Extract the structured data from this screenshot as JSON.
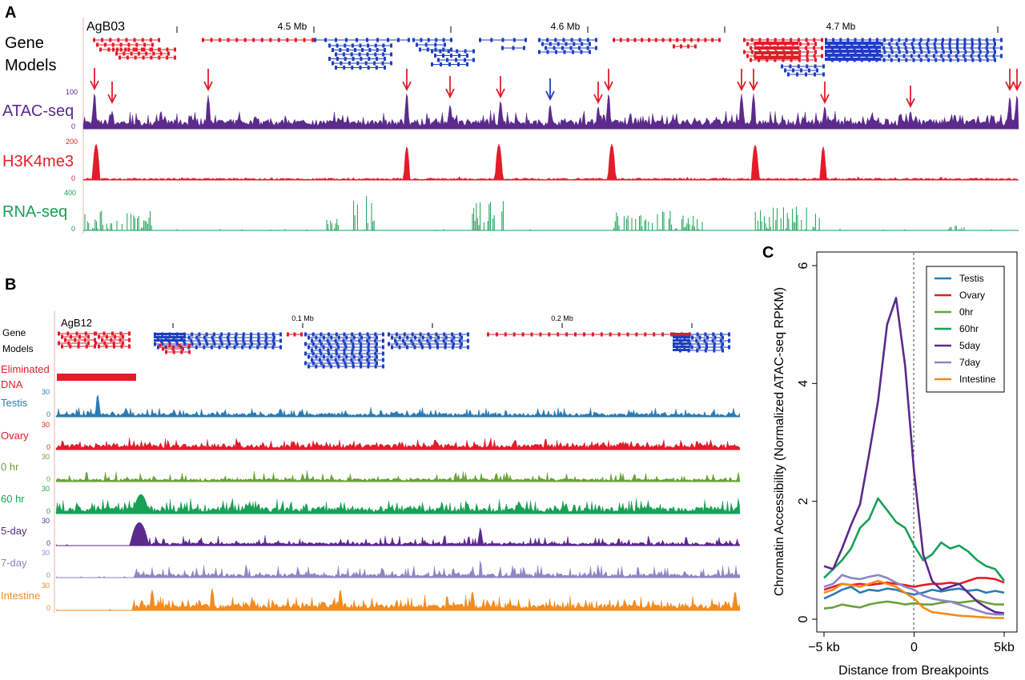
{
  "panels": {
    "a": "A",
    "b": "B",
    "c": "C"
  },
  "panel_a": {
    "chrom": "AgB03",
    "coord_ticks": [
      {
        "label": "4.5 Mb"
      },
      {
        "label": "4.6 Mb"
      },
      {
        "label": "4.7 Mb"
      }
    ],
    "gene_models_line1": "Gene",
    "gene_models_line2": "Models",
    "tracks": [
      {
        "label": "ATAC-seq",
        "max": "100",
        "min": "0",
        "color": "#5b2a8c"
      },
      {
        "label": "H3K4me3",
        "max": "200",
        "min": "0",
        "color": "#e11d2a"
      },
      {
        "label": "RNA-seq",
        "max": "400",
        "min": "0",
        "color": "#17a155"
      }
    ],
    "arrow_colors": {
      "red": "#e11d2a",
      "blue": "#1f3fbf"
    }
  },
  "panel_b": {
    "chrom": "AgB12",
    "coord_ticks": [
      {
        "label": "0.1 Mb"
      },
      {
        "label": "0.2 Mb"
      }
    ],
    "gene_models_line1": "Gene",
    "gene_models_line2": "Models",
    "eliminated_line1": "Eliminated",
    "eliminated_line2": "DNA",
    "tracks": [
      {
        "label": "Testis",
        "max": "30",
        "min": "0",
        "color": "#2b7bb4"
      },
      {
        "label": "Ovary",
        "max": "30",
        "min": "0",
        "color": "#e11d2a"
      },
      {
        "label": "0 hr",
        "max": "30",
        "min": "0",
        "color": "#6aa13a"
      },
      {
        "label": "60 hr",
        "max": "30",
        "min": "0",
        "color": "#17a155"
      },
      {
        "label": "5-day",
        "max": "30",
        "min": "0",
        "color": "#5b2a8c"
      },
      {
        "label": "7-day",
        "max": "30",
        "min": "0",
        "color": "#8c86c2"
      },
      {
        "label": "Intestine",
        "max": "30",
        "min": "0",
        "color": "#f38b1e"
      }
    ]
  },
  "chart_data": {
    "type": "line",
    "title": "",
    "xlabel": "Distance from Breakpoints",
    "ylabel": "Chromatin Accessibility (Normalized ATAC-seq RPKM)",
    "xlim": [
      -5,
      5
    ],
    "ylim": [
      0,
      6
    ],
    "x_tick_labels": [
      "−5 kb",
      "0",
      "5kb"
    ],
    "y_ticks": [
      "0",
      "2",
      "4",
      "6"
    ],
    "x": [
      -5,
      -4.5,
      -4,
      -3.5,
      -3,
      -2.5,
      -2,
      -1.5,
      -1,
      -0.5,
      0,
      0.5,
      1,
      1.5,
      2,
      2.5,
      3,
      3.5,
      4,
      4.5,
      5
    ],
    "series": [
      {
        "name": "Testis",
        "color": "#2b7bb4",
        "values": [
          0.35,
          0.42,
          0.5,
          0.55,
          0.45,
          0.5,
          0.48,
          0.52,
          0.5,
          0.45,
          0.42,
          0.45,
          0.5,
          0.47,
          0.5,
          0.52,
          0.48,
          0.5,
          0.45,
          0.48,
          0.45
        ]
      },
      {
        "name": "Ovary",
        "color": "#e11d2a",
        "values": [
          0.5,
          0.55,
          0.6,
          0.58,
          0.6,
          0.58,
          0.6,
          0.62,
          0.6,
          0.58,
          0.55,
          0.58,
          0.6,
          0.6,
          0.62,
          0.6,
          0.65,
          0.7,
          0.7,
          0.68,
          0.62
        ]
      },
      {
        "name": "0hr",
        "color": "#6aa13a",
        "values": [
          0.18,
          0.2,
          0.25,
          0.22,
          0.2,
          0.25,
          0.28,
          0.3,
          0.28,
          0.25,
          0.27,
          0.25,
          0.25,
          0.28,
          0.3,
          0.28,
          0.3,
          0.32,
          0.28,
          0.25,
          0.25
        ]
      },
      {
        "name": "60hr",
        "color": "#17a155",
        "values": [
          0.7,
          0.85,
          1.0,
          1.2,
          1.55,
          1.7,
          2.05,
          1.85,
          1.65,
          1.55,
          1.25,
          1.0,
          1.1,
          1.3,
          1.2,
          1.25,
          1.15,
          1.0,
          0.9,
          0.85,
          0.65
        ]
      },
      {
        "name": "5day",
        "color": "#5b2a8c",
        "values": [
          0.9,
          0.85,
          1.2,
          1.6,
          1.95,
          2.8,
          3.7,
          5.0,
          5.45,
          4.3,
          2.5,
          1.1,
          0.65,
          0.5,
          0.55,
          0.6,
          0.45,
          0.3,
          0.2,
          0.12,
          0.1
        ]
      },
      {
        "name": "7day",
        "color": "#8c86c2",
        "values": [
          0.55,
          0.6,
          0.75,
          0.7,
          0.68,
          0.72,
          0.75,
          0.7,
          0.62,
          0.55,
          0.5,
          0.4,
          0.35,
          0.32,
          0.3,
          0.25,
          0.2,
          0.15,
          0.1,
          0.08,
          0.08
        ]
      },
      {
        "name": "Intestine",
        "color": "#f38b1e",
        "values": [
          0.45,
          0.5,
          0.6,
          0.58,
          0.55,
          0.6,
          0.65,
          0.6,
          0.55,
          0.45,
          0.35,
          0.2,
          0.12,
          0.1,
          0.08,
          0.06,
          0.05,
          0.04,
          0.03,
          0.02,
          0.02
        ]
      }
    ],
    "legend_position": "top-right",
    "vertical_reference": "dashed line at 0"
  }
}
